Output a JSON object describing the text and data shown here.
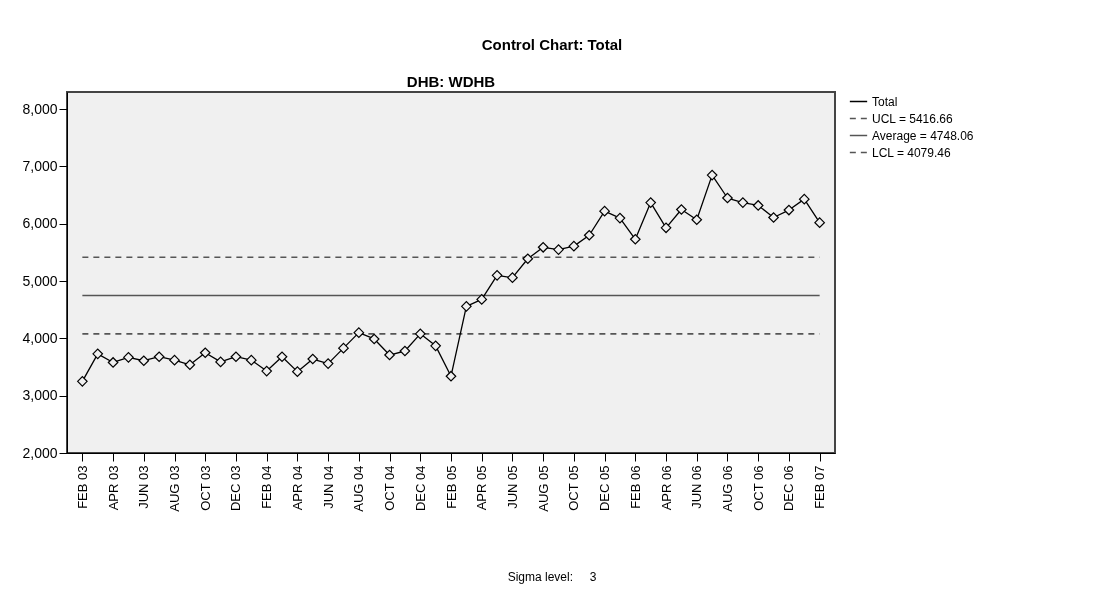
{
  "chart_data": {
    "type": "line",
    "title": "Control Chart: Total",
    "subtitle": "DHB: WDHB",
    "categories": [
      "FEB 03",
      null,
      "APR 03",
      null,
      "JUN 03",
      null,
      "AUG 03",
      null,
      "OCT 03",
      null,
      "DEC 03",
      null,
      "FEB 04",
      null,
      "APR 04",
      null,
      "JUN 04",
      null,
      "AUG 04",
      null,
      "OCT 04",
      null,
      "DEC 04",
      null,
      "FEB 05",
      null,
      "APR 05",
      null,
      "JUN 05",
      null,
      "AUG 05",
      null,
      "OCT 05",
      null,
      "DEC 05",
      null,
      "FEB 06",
      null,
      "APR 06",
      null,
      "JUN 06",
      null,
      "AUG 06",
      null,
      "OCT 06",
      null,
      "DEC 06",
      null,
      "FEB 07"
    ],
    "series": [
      {
        "name": "Total",
        "color": "#000000",
        "values": [
          3250,
          3730,
          3580,
          3670,
          3610,
          3680,
          3620,
          3540,
          3750,
          3590,
          3680,
          3620,
          3430,
          3680,
          3420,
          3640,
          3560,
          3830,
          4100,
          3990,
          3710,
          3780,
          4080,
          3870,
          3340,
          4560,
          4680,
          5100,
          5060,
          5390,
          5590,
          5550,
          5610,
          5800,
          6220,
          6100,
          5730,
          6370,
          5930,
          6250,
          6070,
          6850,
          6450,
          6370,
          6320,
          6110,
          6240,
          6430,
          6020
        ]
      }
    ],
    "ref_lines": [
      {
        "axis": "y",
        "value": 5416.66,
        "label": "UCL = 5416.66",
        "color": "#555555",
        "line_style": "dashed"
      },
      {
        "axis": "y",
        "value": 4748.06,
        "label": "Average = 4748.06",
        "color": "#555555",
        "line_style": "solid"
      },
      {
        "axis": "y",
        "value": 4079.46,
        "label": "LCL = 4079.46",
        "color": "#555555",
        "line_style": "dashed"
      }
    ],
    "ylim": [
      2000,
      8300
    ],
    "yticks": [
      {
        "value": 2000,
        "label": "2,000"
      },
      {
        "value": 3000,
        "label": "3,000"
      },
      {
        "value": 4000,
        "label": "4,000"
      },
      {
        "value": 5000,
        "label": "5,000"
      },
      {
        "value": 6000,
        "label": "6,000"
      },
      {
        "value": 7000,
        "label": "7,000"
      },
      {
        "value": 8000,
        "label": "8,000"
      }
    ],
    "marker": "diamond",
    "line_style": "solid",
    "grid": false,
    "legend": "top right",
    "annotations": [
      "Sigma level:     3"
    ]
  }
}
